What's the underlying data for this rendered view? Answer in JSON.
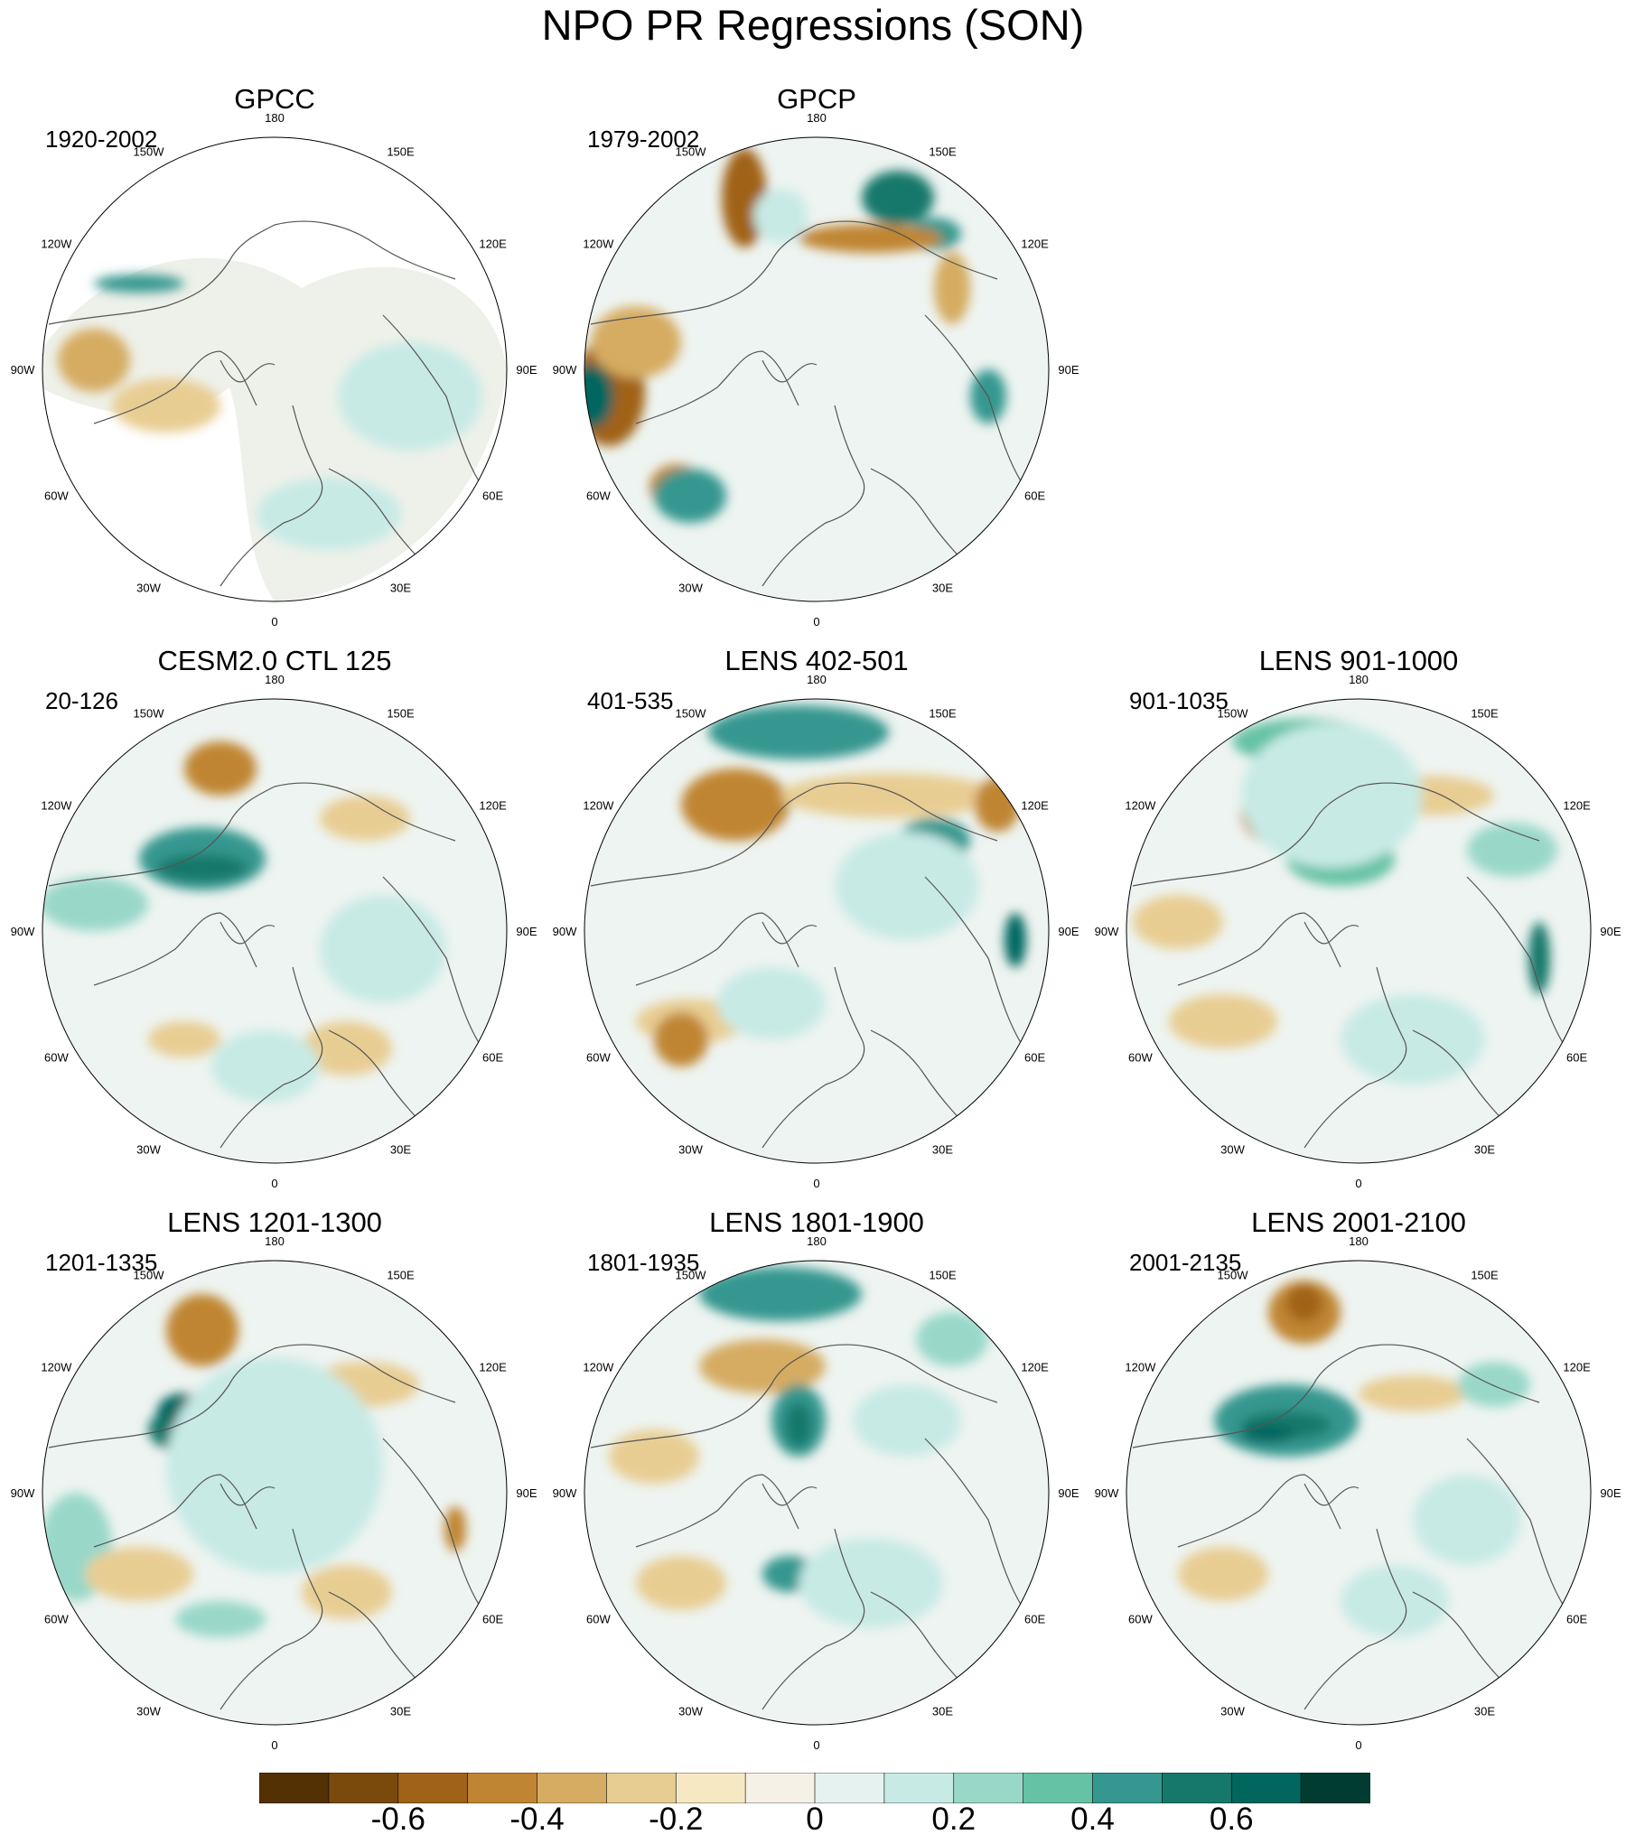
{
  "title": "NPO PR Regressions (SON)",
  "panels": [
    {
      "title": "GPCC",
      "period": "1920-2002",
      "dataset": "GPCC"
    },
    {
      "title": "GPCP",
      "period": "1979-2002",
      "dataset": "GPCP"
    },
    {
      "title": "CESM2.0 CTL 125",
      "period": "20-126",
      "dataset": "CESM2.0 CTL 125"
    },
    {
      "title": "LENS 402-501",
      "period": "401-535",
      "dataset": "LENS 402-501"
    },
    {
      "title": "LENS 901-1000",
      "period": "901-1035",
      "dataset": "LENS 901-1000"
    },
    {
      "title": "LENS 1201-1300",
      "period": "1201-1335",
      "dataset": "LENS 1201-1300"
    },
    {
      "title": "LENS 1801-1900",
      "period": "1801-1935",
      "dataset": "LENS 1801-1900"
    },
    {
      "title": "LENS 2001-2100",
      "period": "2001-2135",
      "dataset": "LENS 2001-2100"
    }
  ],
  "longitude_labels": [
    "180",
    "150E",
    "120E",
    "90E",
    "60E",
    "30E",
    "0",
    "30W",
    "60W",
    "90W",
    "120W",
    "150W"
  ],
  "colorbar": {
    "colors": [
      "#543005",
      "#7a4a0d",
      "#a06219",
      "#c08533",
      "#d6ac62",
      "#e8cd93",
      "#f6e8c3",
      "#f5f1e6",
      "#e6f2f0",
      "#c7eae5",
      "#99d8c9",
      "#66c2a5",
      "#35978f",
      "#16786b",
      "#01665e",
      "#003c30"
    ],
    "tick_labels": [
      "-0.6",
      "-0.4",
      "-0.2",
      "0",
      "0.2",
      "0.4",
      "0.6"
    ],
    "tick_values": [
      -0.6,
      -0.4,
      -0.2,
      0,
      0.2,
      0.4,
      0.6
    ]
  },
  "colors": {
    "land_outline": "#555555",
    "map_border": "#000000",
    "background_neutral": "#eef4f1"
  }
}
